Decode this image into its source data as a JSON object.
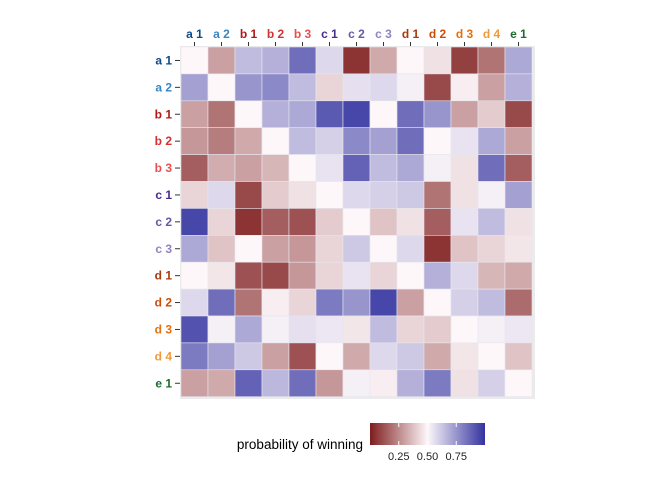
{
  "chart_data": {
    "type": "heatmap",
    "title": "",
    "xlabel": "",
    "ylabel": "",
    "x_position": "top",
    "categories": [
      "a 1",
      "a 2",
      "b 1",
      "b 2",
      "b 3",
      "c 1",
      "c 2",
      "c 3",
      "d 1",
      "d 2",
      "d 3",
      "d 4",
      "e 1"
    ],
    "category_colors": {
      "a 1": "#0f4a8a",
      "a 2": "#3a86c0",
      "b 1": "#b01818",
      "b 2": "#d23232",
      "b 3": "#e85050",
      "c 1": "#4a2c8a",
      "c 2": "#6a55a8",
      "c 3": "#9283c0",
      "d 1": "#a63a08",
      "d 2": "#cc4d0a",
      "d 3": "#e6700e",
      "d 4": "#f09a3c",
      "e 1": "#1f6b2f"
    },
    "rows": [
      "a 1",
      "a 2",
      "b 1",
      "b 2",
      "b 3",
      "c 1",
      "c 2",
      "c 3",
      "d 1",
      "d 2",
      "d 3",
      "d 4",
      "e 1"
    ],
    "values": [
      [
        0.5,
        0.3,
        0.65,
        0.68,
        0.85,
        0.58,
        0.05,
        0.32,
        0.5,
        0.45,
        0.08,
        0.2,
        0.7
      ],
      [
        0.72,
        0.5,
        0.75,
        0.78,
        0.65,
        0.42,
        0.56,
        0.58,
        0.52,
        0.1,
        0.48,
        0.3,
        0.68
      ],
      [
        0.3,
        0.2,
        0.5,
        0.68,
        0.7,
        0.9,
        0.95,
        0.5,
        0.85,
        0.75,
        0.3,
        0.4,
        0.1
      ],
      [
        0.28,
        0.22,
        0.32,
        0.5,
        0.65,
        0.6,
        0.78,
        0.72,
        0.85,
        0.5,
        0.55,
        0.7,
        0.3
      ],
      [
        0.15,
        0.33,
        0.3,
        0.35,
        0.5,
        0.55,
        0.88,
        0.65,
        0.7,
        0.52,
        0.45,
        0.85,
        0.15
      ],
      [
        0.42,
        0.58,
        0.1,
        0.4,
        0.45,
        0.5,
        0.58,
        0.6,
        0.62,
        0.2,
        0.45,
        0.52,
        0.72
      ],
      [
        0.95,
        0.42,
        0.05,
        0.15,
        0.12,
        0.4,
        0.5,
        0.38,
        0.45,
        0.15,
        0.55,
        0.65,
        0.45
      ],
      [
        0.7,
        0.38,
        0.5,
        0.3,
        0.28,
        0.42,
        0.62,
        0.5,
        0.58,
        0.05,
        0.38,
        0.42,
        0.46
      ],
      [
        0.5,
        0.46,
        0.12,
        0.1,
        0.28,
        0.42,
        0.55,
        0.42,
        0.5,
        0.68,
        0.58,
        0.35,
        0.32
      ],
      [
        0.58,
        0.85,
        0.2,
        0.48,
        0.42,
        0.82,
        0.75,
        0.95,
        0.3,
        0.5,
        0.6,
        0.65,
        0.18
      ],
      [
        0.92,
        0.52,
        0.7,
        0.52,
        0.56,
        0.54,
        0.46,
        0.65,
        0.42,
        0.4,
        0.5,
        0.52,
        0.54
      ],
      [
        0.82,
        0.72,
        0.62,
        0.3,
        0.12,
        0.5,
        0.32,
        0.58,
        0.62,
        0.32,
        0.46,
        0.5,
        0.38
      ],
      [
        0.3,
        0.32,
        0.88,
        0.66,
        0.85,
        0.28,
        0.52,
        0.48,
        0.68,
        0.82,
        0.45,
        0.6,
        0.5
      ]
    ],
    "legend": {
      "title": "probability of winning",
      "position": "bottom",
      "ticks": [
        0.25,
        0.5,
        0.75
      ],
      "tick_labels": [
        "0.25",
        "0.50",
        "0.75"
      ],
      "range": [
        0,
        1
      ],
      "colors": {
        "low": "#7f1d1d",
        "mid": "#fdf7fa",
        "high": "#3333a0"
      }
    },
    "grid": false
  }
}
